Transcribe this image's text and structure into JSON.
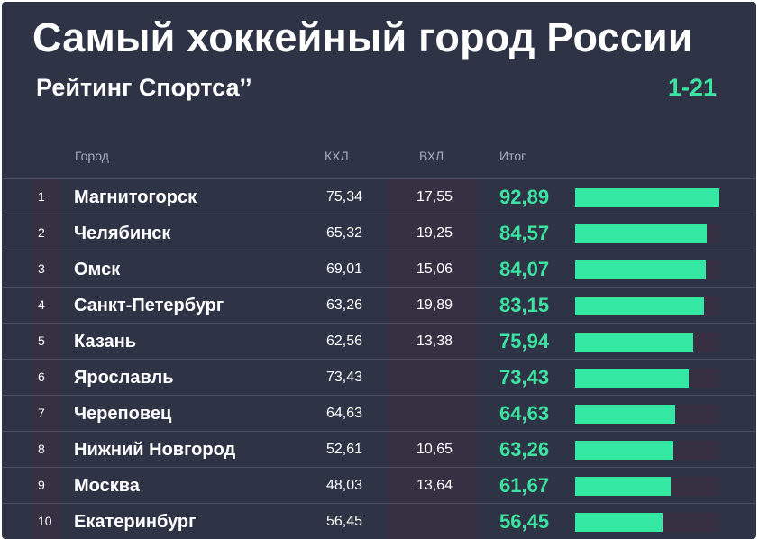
{
  "header": {
    "title": "Самый хоккейный город России",
    "subtitle": "Рейтинг Спортса’’",
    "range": "1-21"
  },
  "columns": {
    "city": "Город",
    "khl": "КХЛ",
    "vhl": "ВХЛ",
    "total": "Итог"
  },
  "colors": {
    "background": "#2e3445",
    "accent": "#3de3a0",
    "band": "#372f42"
  },
  "chart_data": {
    "type": "bar",
    "orientation": "horizontal",
    "max_value": 92.89,
    "rows": [
      {
        "rank": "1",
        "city": "Магнитогорск",
        "khl": "75,34",
        "vhl": "17,55",
        "total": "92,89",
        "value": 92.89
      },
      {
        "rank": "2",
        "city": "Челябинск",
        "khl": "65,32",
        "vhl": "19,25",
        "total": "84,57",
        "value": 84.57
      },
      {
        "rank": "3",
        "city": "Омск",
        "khl": "69,01",
        "vhl": "15,06",
        "total": "84,07",
        "value": 84.07
      },
      {
        "rank": "4",
        "city": "Санкт-Петербург",
        "khl": "63,26",
        "vhl": "19,89",
        "total": "83,15",
        "value": 83.15
      },
      {
        "rank": "5",
        "city": "Казань",
        "khl": "62,56",
        "vhl": "13,38",
        "total": "75,94",
        "value": 75.94
      },
      {
        "rank": "6",
        "city": "Ярославль",
        "khl": "73,43",
        "vhl": "",
        "total": "73,43",
        "value": 73.43
      },
      {
        "rank": "7",
        "city": "Череповец",
        "khl": "64,63",
        "vhl": "",
        "total": "64,63",
        "value": 64.63
      },
      {
        "rank": "8",
        "city": "Нижний Новгород",
        "khl": "52,61",
        "vhl": "10,65",
        "total": "63,26",
        "value": 63.26
      },
      {
        "rank": "9",
        "city": "Москва",
        "khl": "48,03",
        "vhl": "13,64",
        "total": "61,67",
        "value": 61.67
      },
      {
        "rank": "10",
        "city": "Екатеринбург",
        "khl": "56,45",
        "vhl": "",
        "total": "56,45",
        "value": 56.45
      }
    ]
  }
}
